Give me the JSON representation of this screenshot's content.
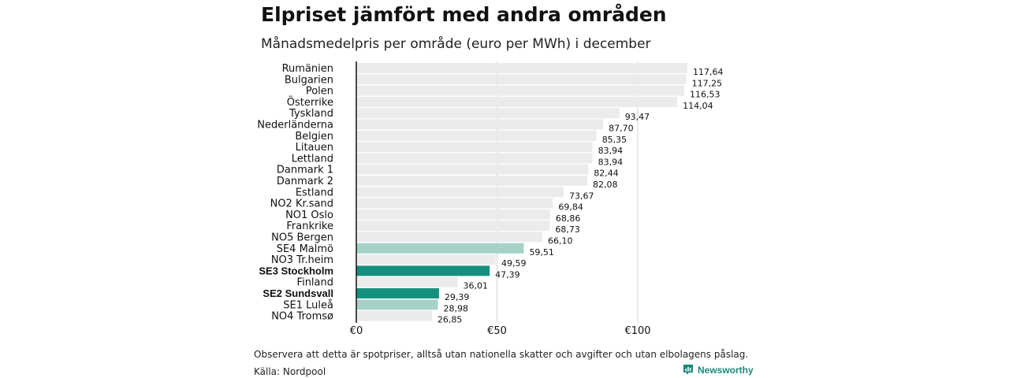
{
  "title": "Elpriset jämfört med andra områden",
  "subtitle": "Månadsmedelpris per område (euro per MWh) i december",
  "note": "Observera att detta är spotpriser, alltså utan nationella skatter och avgifter och utan elbolagens påslag.",
  "source": "Källa: Nordpool",
  "brand": "Newsworthy",
  "colors": {
    "default_bar": "#ebebeb",
    "highlight_bar": "#15907f",
    "light_highlight_bar": "#a6d1c6",
    "axis": "#111111",
    "grid": "#d6d6d6"
  },
  "chart_data": {
    "type": "bar",
    "orientation": "horizontal",
    "title": "Elpriset jämfört med andra områden",
    "subtitle": "Månadsmedelpris per område (euro per MWh) i december",
    "xlabel": "",
    "ylabel": "",
    "xlim": [
      0,
      130
    ],
    "x_ticks": [
      0,
      50,
      100
    ],
    "x_tick_labels": [
      "€0",
      "€50",
      "€100"
    ],
    "categories": [
      "Rumänien",
      "Bulgarien",
      "Polen",
      "Österrike",
      "Tyskland",
      "Nederländerna",
      "Belgien",
      "Litauen",
      "Lettland",
      "Danmark 1",
      "Danmark 2",
      "Estland",
      "NO2 Kr.sand",
      "NO1 Oslo",
      "Frankrike",
      "NO5 Bergen",
      "SE4 Malmö",
      "NO3 Tr.heim",
      "SE3 Stockholm",
      "Finland",
      "SE2 Sundsvall",
      "SE1 Luleå",
      "NO4 Tromsø"
    ],
    "values": [
      117.64,
      117.25,
      116.53,
      114.04,
      93.47,
      87.7,
      85.35,
      83.94,
      83.94,
      82.44,
      82.08,
      73.67,
      69.84,
      68.86,
      68.73,
      66.1,
      59.51,
      49.59,
      47.39,
      36.01,
      29.39,
      28.98,
      26.85
    ],
    "value_labels": [
      "117,64",
      "117,25",
      "116,53",
      "114,04",
      "93,47",
      "87,70",
      "85,35",
      "83,94",
      "83,94",
      "82,44",
      "82,08",
      "73,67",
      "69,84",
      "68,86",
      "68,73",
      "66,10",
      "59,51",
      "49,59",
      "47,39",
      "36,01",
      "29,39",
      "28,98",
      "26,85"
    ],
    "styles": [
      "default",
      "default",
      "default",
      "default",
      "default",
      "default",
      "default",
      "default",
      "default",
      "default",
      "default",
      "default",
      "default",
      "default",
      "default",
      "default",
      "light",
      "default",
      "highlight",
      "default",
      "highlight",
      "light",
      "default"
    ],
    "bold_categories": [
      "SE3 Stockholm",
      "SE2 Sundsvall"
    ]
  }
}
